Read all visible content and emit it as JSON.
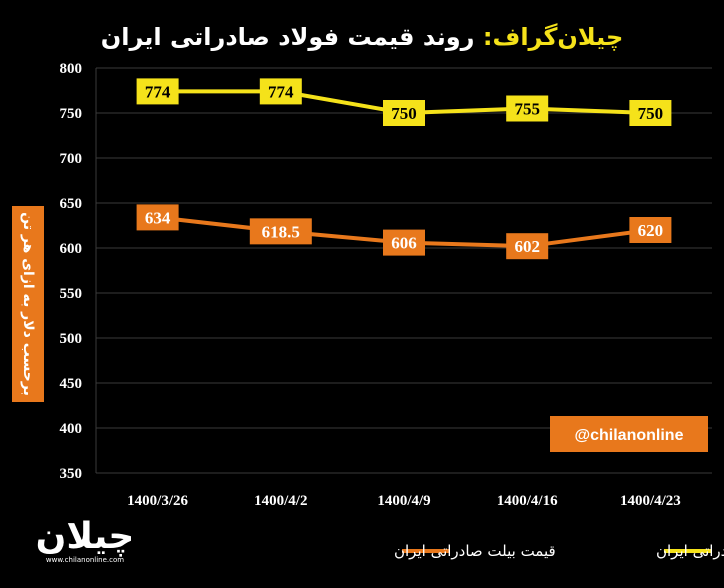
{
  "chart_data": {
    "type": "line",
    "title_brand": "چیلان‌گراف:",
    "title": "روند قیمت فولاد صادراتی ایران",
    "ylabel": "برحسب دلار به ازای هر تن",
    "ylim": [
      350,
      800
    ],
    "yticks": [
      350,
      400,
      450,
      500,
      550,
      600,
      650,
      700,
      750,
      800
    ],
    "categories": [
      "1400/3/26",
      "1400/4/2",
      "1400/4/9",
      "1400/4/16",
      "1400/4/23"
    ],
    "grid": true,
    "legend_position": "bottom",
    "series": [
      {
        "name": "قیمت اسلب صادراتی ایران",
        "values": [
          774,
          774,
          750,
          755,
          750
        ],
        "labels": [
          "774",
          "774",
          "750",
          "755",
          "750"
        ],
        "color": "#f5e21a",
        "label_bg": "#f5e21a",
        "label_fg": "#000000"
      },
      {
        "name": "قیمت بیلت صادراتی ایران",
        "values": [
          634,
          618.5,
          606,
          602,
          620
        ],
        "labels": [
          "634",
          "618.5",
          "606",
          "602",
          "620"
        ],
        "color": "#e8781c",
        "label_bg": "#e8781c",
        "label_fg": "#ffffff"
      }
    ]
  },
  "watermark": {
    "handle": "@chilanonline",
    "handle_bg": "#e8781c"
  },
  "logo": {
    "text": "چیلان",
    "url": "www.chilanonline.com"
  }
}
